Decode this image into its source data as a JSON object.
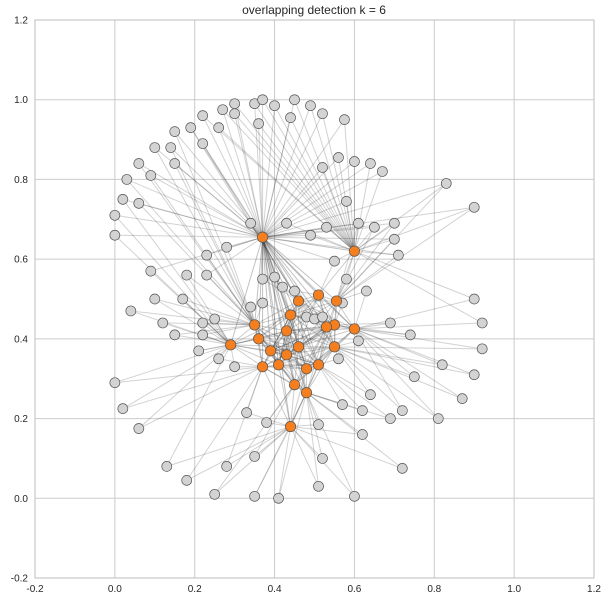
{
  "chart_data": {
    "type": "scatter",
    "title": "overlapping detection k = 6",
    "xlabel": "",
    "ylabel": "",
    "xlim": [
      -0.2,
      1.2
    ],
    "ylim": [
      -0.2,
      1.2
    ],
    "xticks": [
      -0.2,
      0.0,
      0.2,
      0.4,
      0.6,
      0.8,
      1.0,
      1.2
    ],
    "yticks": [
      -0.2,
      0.0,
      0.2,
      0.4,
      0.6,
      0.8,
      1.0,
      1.2
    ],
    "xtick_labels": [
      "-0.2",
      "0.0",
      "0.2",
      "0.4",
      "0.6",
      "0.8",
      "1.0",
      "1.2"
    ],
    "ytick_labels": [
      "-0.2",
      "0.0",
      "0.2",
      "0.4",
      "0.6",
      "0.8",
      "1.0",
      "1.2"
    ],
    "grid": true,
    "colors": {
      "background": "#ffffff",
      "grid": "#cbcbcb",
      "axes_edge": "#bdbdbd",
      "edge": "#333333",
      "node_gray": "#d3d3d3",
      "node_orange": "#f57f1f",
      "node_outline": "#555555"
    },
    "gray_nodes": [
      [
        0.35,
        0.99
      ],
      [
        0.37,
        1.0
      ],
      [
        0.4,
        0.985
      ],
      [
        0.45,
        1.0
      ],
      [
        0.49,
        0.985
      ],
      [
        0.52,
        0.965
      ],
      [
        0.575,
        0.95
      ],
      [
        0.44,
        0.955
      ],
      [
        0.36,
        0.94
      ],
      [
        0.3,
        0.99
      ],
      [
        0.27,
        0.975
      ],
      [
        0.3,
        0.965
      ],
      [
        0.22,
        0.96
      ],
      [
        0.26,
        0.93
      ],
      [
        0.19,
        0.93
      ],
      [
        0.15,
        0.92
      ],
      [
        0.1,
        0.88
      ],
      [
        0.14,
        0.88
      ],
      [
        0.06,
        0.84
      ],
      [
        0.15,
        0.84
      ],
      [
        0.22,
        0.89
      ],
      [
        0.09,
        0.81
      ],
      [
        0.03,
        0.8
      ],
      [
        0.02,
        0.75
      ],
      [
        0.06,
        0.74
      ],
      [
        0.0,
        0.71
      ],
      [
        0.0,
        0.66
      ],
      [
        0.52,
        0.83
      ],
      [
        0.56,
        0.855
      ],
      [
        0.6,
        0.845
      ],
      [
        0.64,
        0.84
      ],
      [
        0.67,
        0.82
      ],
      [
        0.58,
        0.745
      ],
      [
        0.34,
        0.69
      ],
      [
        0.43,
        0.69
      ],
      [
        0.53,
        0.68
      ],
      [
        0.61,
        0.69
      ],
      [
        0.65,
        0.68
      ],
      [
        0.7,
        0.69
      ],
      [
        0.7,
        0.65
      ],
      [
        0.49,
        0.66
      ],
      [
        0.71,
        0.61
      ],
      [
        0.23,
        0.61
      ],
      [
        0.28,
        0.63
      ],
      [
        0.18,
        0.56
      ],
      [
        0.23,
        0.56
      ],
      [
        0.09,
        0.57
      ],
      [
        0.37,
        0.55
      ],
      [
        0.4,
        0.555
      ],
      [
        0.55,
        0.595
      ],
      [
        0.58,
        0.55
      ],
      [
        0.63,
        0.52
      ],
      [
        0.1,
        0.5
      ],
      [
        0.17,
        0.5
      ],
      [
        0.04,
        0.47
      ],
      [
        0.12,
        0.44
      ],
      [
        0.15,
        0.41
      ],
      [
        0.22,
        0.44
      ],
      [
        0.25,
        0.45
      ],
      [
        0.22,
        0.41
      ],
      [
        0.34,
        0.48
      ],
      [
        0.42,
        0.53
      ],
      [
        0.37,
        0.49
      ],
      [
        0.45,
        0.52
      ],
      [
        0.48,
        0.455
      ],
      [
        0.5,
        0.45
      ],
      [
        0.52,
        0.455
      ],
      [
        0.57,
        0.49
      ],
      [
        0.21,
        0.37
      ],
      [
        0.26,
        0.35
      ],
      [
        0.3,
        0.33
      ],
      [
        0.61,
        0.395
      ],
      [
        0.69,
        0.44
      ],
      [
        0.74,
        0.41
      ],
      [
        0.9,
        0.5
      ],
      [
        0.92,
        0.44
      ],
      [
        0.92,
        0.375
      ],
      [
        0.82,
        0.335
      ],
      [
        0.9,
        0.31
      ],
      [
        0.75,
        0.305
      ],
      [
        0.56,
        0.35
      ],
      [
        0.64,
        0.26
      ],
      [
        0.87,
        0.25
      ],
      [
        0.83,
        0.79
      ],
      [
        0.9,
        0.73
      ],
      [
        0.0,
        0.29
      ],
      [
        0.02,
        0.225
      ],
      [
        0.06,
        0.175
      ],
      [
        0.33,
        0.215
      ],
      [
        0.38,
        0.19
      ],
      [
        0.51,
        0.185
      ],
      [
        0.57,
        0.235
      ],
      [
        0.62,
        0.22
      ],
      [
        0.62,
        0.16
      ],
      [
        0.69,
        0.2
      ],
      [
        0.72,
        0.22
      ],
      [
        0.81,
        0.2
      ],
      [
        0.35,
        0.105
      ],
      [
        0.52,
        0.1
      ],
      [
        0.28,
        0.08
      ],
      [
        0.13,
        0.08
      ],
      [
        0.18,
        0.045
      ],
      [
        0.25,
        0.01
      ],
      [
        0.35,
        0.005
      ],
      [
        0.41,
        0.0
      ],
      [
        0.51,
        0.03
      ],
      [
        0.6,
        0.005
      ],
      [
        0.72,
        0.075
      ]
    ],
    "orange_nodes": [
      [
        0.37,
        0.655
      ],
      [
        0.6,
        0.62
      ],
      [
        0.46,
        0.495
      ],
      [
        0.51,
        0.51
      ],
      [
        0.555,
        0.495
      ],
      [
        0.44,
        0.46
      ],
      [
        0.55,
        0.435
      ],
      [
        0.35,
        0.435
      ],
      [
        0.53,
        0.43
      ],
      [
        0.6,
        0.425
      ],
      [
        0.43,
        0.42
      ],
      [
        0.36,
        0.4
      ],
      [
        0.29,
        0.385
      ],
      [
        0.39,
        0.37
      ],
      [
        0.46,
        0.38
      ],
      [
        0.55,
        0.38
      ],
      [
        0.43,
        0.36
      ],
      [
        0.41,
        0.335
      ],
      [
        0.37,
        0.33
      ],
      [
        0.48,
        0.325
      ],
      [
        0.51,
        0.335
      ],
      [
        0.45,
        0.285
      ],
      [
        0.48,
        0.265
      ],
      [
        0.44,
        0.18
      ]
    ]
  }
}
